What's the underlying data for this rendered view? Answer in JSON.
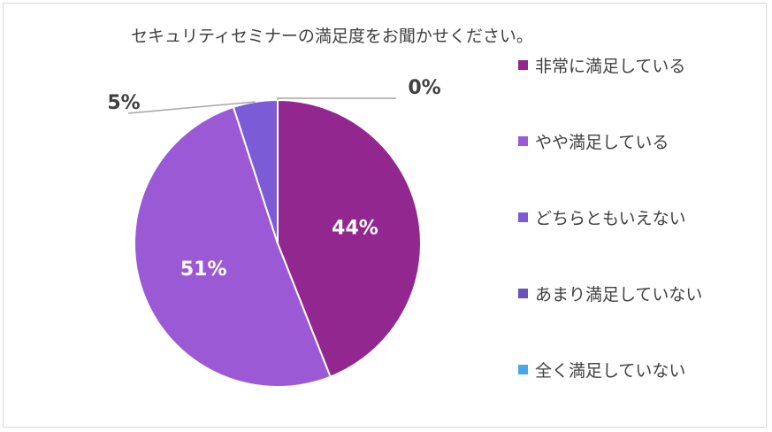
{
  "chart_data": {
    "type": "pie",
    "title": "セキュリティセミナーの満足度をお聞かせください。",
    "legend_position": "right",
    "slices": [
      {
        "label": "非常に満足している",
        "value": 44,
        "display": "44%",
        "color": "#92278f"
      },
      {
        "label": "やや満足している",
        "value": 51,
        "display": "51%",
        "color": "#9b59d6"
      },
      {
        "label": "どちらともいえない",
        "value": 5,
        "display": "5%",
        "color": "#7b5bd6"
      },
      {
        "label": "あまり満足していない",
        "value": 0,
        "display": "0%",
        "color": "#6a53b8"
      },
      {
        "label": "全く満足していない",
        "value": 0,
        "display": "",
        "color": "#4ba6e8"
      }
    ]
  }
}
